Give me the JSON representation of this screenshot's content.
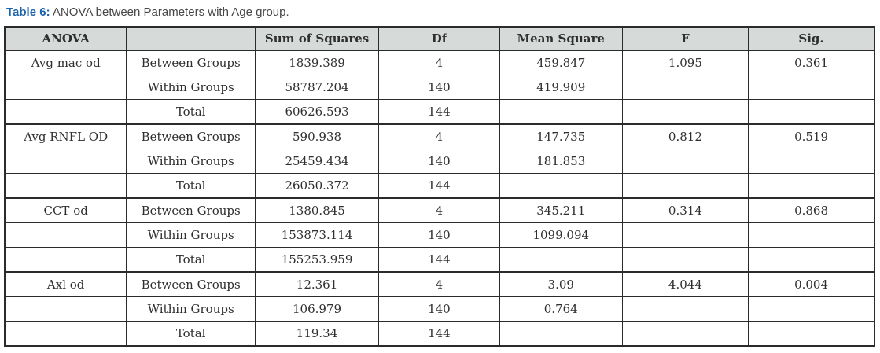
{
  "caption": {
    "label": "Table 6:",
    "text": " ANOVA between Parameters with Age group."
  },
  "colors": {
    "accent_blue": "#1b63ad",
    "header_background": "#d6dad9",
    "border": "#2b2b2b",
    "body_text": "#2f2f2f",
    "caption_text": "#474747"
  },
  "table": {
    "columns": [
      "ANOVA",
      "",
      "Sum of Squares",
      "Df",
      "Mean Square",
      "F",
      "Sig."
    ],
    "groups": [
      {
        "parameter": "Avg mac od",
        "rows": [
          {
            "source": "Between Groups",
            "sum_of_squares": "1839.389",
            "df": "4",
            "mean_square": "459.847",
            "f": "1.095",
            "sig": "0.361"
          },
          {
            "source": "Within Groups",
            "sum_of_squares": "58787.204",
            "df": "140",
            "mean_square": "419.909",
            "f": "",
            "sig": ""
          },
          {
            "source": "Total",
            "sum_of_squares": "60626.593",
            "df": "144",
            "mean_square": "",
            "f": "",
            "sig": ""
          }
        ]
      },
      {
        "parameter": "Avg RNFL OD",
        "rows": [
          {
            "source": "Between Groups",
            "sum_of_squares": "590.938",
            "df": "4",
            "mean_square": "147.735",
            "f": "0.812",
            "sig": "0.519"
          },
          {
            "source": "Within Groups",
            "sum_of_squares": "25459.434",
            "df": "140",
            "mean_square": "181.853",
            "f": "",
            "sig": ""
          },
          {
            "source": "Total",
            "sum_of_squares": "26050.372",
            "df": "144",
            "mean_square": "",
            "f": "",
            "sig": ""
          }
        ]
      },
      {
        "parameter": "CCT od",
        "rows": [
          {
            "source": "Between Groups",
            "sum_of_squares": "1380.845",
            "df": "4",
            "mean_square": "345.211",
            "f": "0.314",
            "sig": "0.868"
          },
          {
            "source": "Within Groups",
            "sum_of_squares": "153873.114",
            "df": "140",
            "mean_square": "1099.094",
            "f": "",
            "sig": ""
          },
          {
            "source": "Total",
            "sum_of_squares": "155253.959",
            "df": "144",
            "mean_square": "",
            "f": "",
            "sig": ""
          }
        ]
      },
      {
        "parameter": "Axl od",
        "rows": [
          {
            "source": "Between Groups",
            "sum_of_squares": "12.361",
            "df": "4",
            "mean_square": "3.09",
            "f": "4.044",
            "sig": "0.004"
          },
          {
            "source": "Within Groups",
            "sum_of_squares": "106.979",
            "df": "140",
            "mean_square": "0.764",
            "f": "",
            "sig": ""
          },
          {
            "source": "Total",
            "sum_of_squares": "119.34",
            "df": "144",
            "mean_square": "",
            "f": "",
            "sig": ""
          }
        ]
      }
    ]
  }
}
